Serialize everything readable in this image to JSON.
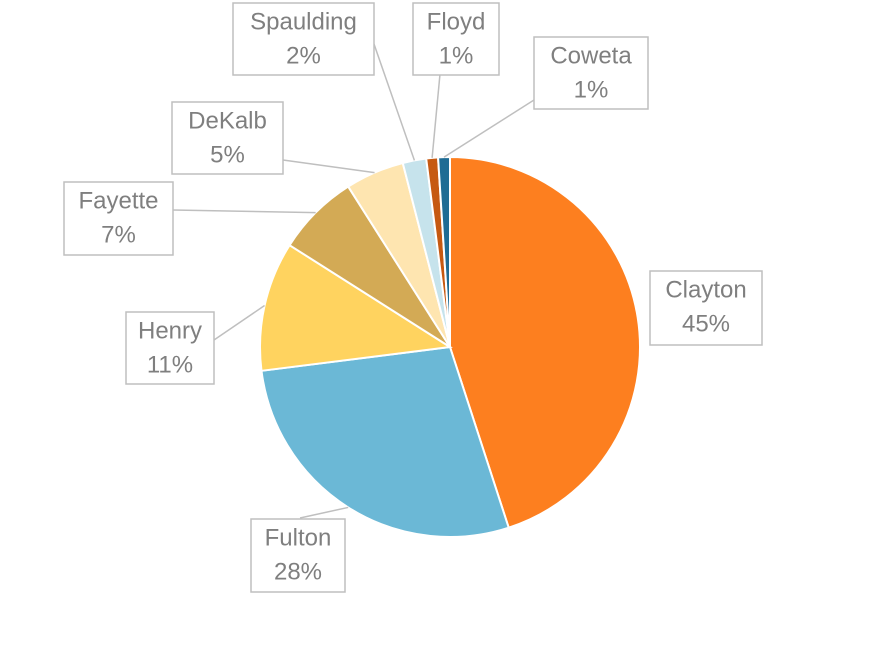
{
  "chart_data": {
    "type": "pie",
    "categories": [
      "Clayton",
      "Fulton",
      "Henry",
      "Fayette",
      "DeKalb",
      "Spaulding",
      "Floyd",
      "Coweta"
    ],
    "values": [
      45,
      28,
      11,
      7,
      5,
      2,
      1,
      1
    ],
    "value_labels": [
      "45%",
      "28%",
      "11%",
      "7%",
      "5%",
      "2%",
      "1%",
      "1%"
    ],
    "colors": [
      "#fd7f1f",
      "#6bb8d6",
      "#ffd35f",
      "#d3aa55",
      "#fee5b0",
      "#c6e3ec",
      "#c65911",
      "#1f6c94"
    ]
  }
}
